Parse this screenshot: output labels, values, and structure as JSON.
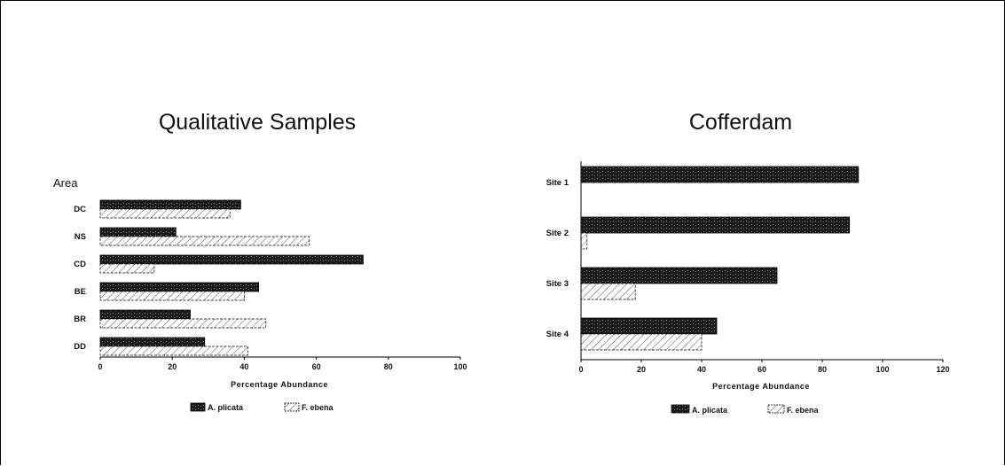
{
  "colors": {
    "dark": "#1a1a1a",
    "light": "#ffffff",
    "axis": "#000000"
  },
  "chart_data": [
    {
      "type": "bar",
      "orientation": "horizontal",
      "title": "Qualitative Samples",
      "category_title": "Area",
      "xlabel": "Percentage Abundance",
      "categories": [
        "DC",
        "NS",
        "CD",
        "BE",
        "BR",
        "DD"
      ],
      "xlim": [
        0,
        100
      ],
      "xticks": [
        "0",
        "20",
        "40",
        "60",
        "80",
        "100"
      ],
      "series": [
        {
          "name": "A. plicata",
          "values": [
            39,
            21,
            73,
            44,
            25,
            29
          ]
        },
        {
          "name": "F. ebena",
          "values": [
            36,
            58,
            15,
            40,
            46,
            41
          ]
        }
      ],
      "legend": [
        "A. plicata",
        "F. ebena"
      ],
      "legend_position": "bottom"
    },
    {
      "type": "bar",
      "orientation": "horizontal",
      "title": "Cofferdam",
      "xlabel": "Percentage Abundance",
      "categories": [
        "Site 1",
        "Site 2",
        "Site 3",
        "Site 4"
      ],
      "xlim": [
        0,
        120
      ],
      "xticks": [
        "0",
        "20",
        "40",
        "60",
        "80",
        "100",
        "120"
      ],
      "series": [
        {
          "name": "A. plicata",
          "values": [
            92,
            89,
            65,
            45
          ]
        },
        {
          "name": "F. ebena",
          "values": [
            0,
            2,
            18,
            40
          ]
        }
      ],
      "legend": [
        "A. plicata",
        "F. ebena"
      ],
      "legend_position": "bottom"
    }
  ]
}
